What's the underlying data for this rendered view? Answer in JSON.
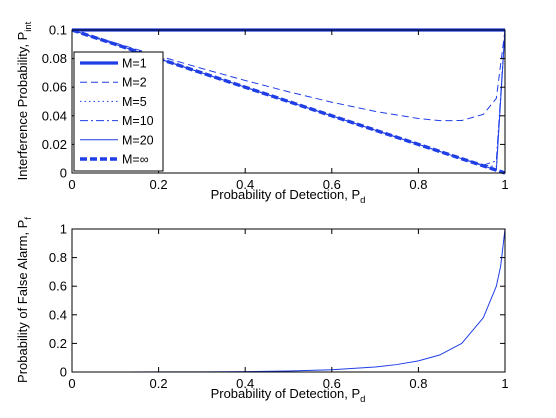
{
  "chart_data": [
    {
      "type": "line",
      "xlabel": "Probability of Detection, P",
      "xlabel_sub": "d",
      "ylabel": "Interference Probability, P",
      "ylabel_sub": "int",
      "xlim": [
        0,
        1
      ],
      "ylim": [
        0,
        0.1
      ],
      "xticks": [
        "0",
        "0.2",
        "0.4",
        "0.6",
        "0.8",
        "1"
      ],
      "xtick_values": [
        0,
        0.2,
        0.4,
        0.6,
        0.8,
        1
      ],
      "yticks": [
        "0",
        "0.02",
        "0.04",
        "0.06",
        "0.08",
        "0.1"
      ],
      "ytick_values": [
        0,
        0.02,
        0.04,
        0.06,
        0.08,
        0.1
      ],
      "grid": false,
      "legend_position": "left",
      "color": "#1f3ee6",
      "x": [
        0,
        0.02,
        0.05,
        0.1,
        0.2,
        0.3,
        0.4,
        0.5,
        0.6,
        0.7,
        0.8,
        0.85,
        0.9,
        0.95,
        0.98,
        1.0
      ],
      "series": [
        {
          "name": "M=1",
          "style": "solid-thick",
          "values": [
            0.1,
            0.1,
            0.1,
            0.1,
            0.1,
            0.1,
            0.1,
            0.1,
            0.1,
            0.1,
            0.1,
            0.1,
            0.1,
            0.1,
            0.1,
            0.1
          ]
        },
        {
          "name": "M=2",
          "style": "dashed",
          "values": [
            0.1,
            0.0981,
            0.0954,
            0.0909,
            0.0819,
            0.0731,
            0.0647,
            0.0568,
            0.0495,
            0.0431,
            0.0381,
            0.0366,
            0.0367,
            0.041,
            0.0522,
            0.1
          ]
        },
        {
          "name": "M=5",
          "style": "dotted",
          "values": [
            0.1,
            0.098,
            0.095,
            0.09,
            0.08,
            0.07,
            0.06,
            0.05,
            0.04,
            0.03,
            0.02,
            0.015,
            0.01,
            0.0055,
            0.0045,
            0.1
          ]
        },
        {
          "name": "M=10",
          "style": "dashdot",
          "values": [
            0.1,
            0.098,
            0.095,
            0.09,
            0.08,
            0.07,
            0.06,
            0.05,
            0.04,
            0.03,
            0.02,
            0.015,
            0.01,
            0.0055,
            0.0085,
            0.1
          ]
        },
        {
          "name": "M=20",
          "style": "solid-thin",
          "values": [
            0.1,
            0.098,
            0.095,
            0.09,
            0.08,
            0.07,
            0.06,
            0.05,
            0.04,
            0.03,
            0.02,
            0.015,
            0.01,
            0.005,
            0.002,
            0.1
          ]
        },
        {
          "name": "M=∞",
          "style": "dashed-thick",
          "values": [
            0.1,
            0.098,
            0.095,
            0.09,
            0.08,
            0.07,
            0.06,
            0.05,
            0.04,
            0.03,
            0.02,
            0.015,
            0.01,
            0.005,
            0.002,
            0.0
          ]
        }
      ]
    },
    {
      "type": "line",
      "xlabel": "Probability of Detection, P",
      "xlabel_sub": "d",
      "ylabel": "Probability of False Alarm, P",
      "ylabel_sub": "f",
      "xlim": [
        0,
        1
      ],
      "ylim": [
        0,
        1
      ],
      "xticks": [
        "0",
        "0.2",
        "0.4",
        "0.6",
        "0.8",
        "1"
      ],
      "xtick_values": [
        0,
        0.2,
        0.4,
        0.6,
        0.8,
        1
      ],
      "yticks": [
        "0",
        "0.2",
        "0.4",
        "0.6",
        "0.8",
        "1"
      ],
      "ytick_values": [
        0,
        0.2,
        0.4,
        0.6,
        0.8,
        1
      ],
      "grid": false,
      "color": "#1f3ee6",
      "x": [
        0,
        0.1,
        0.2,
        0.3,
        0.4,
        0.5,
        0.6,
        0.7,
        0.75,
        0.8,
        0.85,
        0.9,
        0.95,
        0.98,
        0.99,
        1.0
      ],
      "series": [
        {
          "values": [
            0,
            0,
            0.0005,
            0.001,
            0.003,
            0.007,
            0.016,
            0.035,
            0.052,
            0.078,
            0.12,
            0.2,
            0.38,
            0.6,
            0.74,
            1.0
          ]
        }
      ]
    }
  ]
}
